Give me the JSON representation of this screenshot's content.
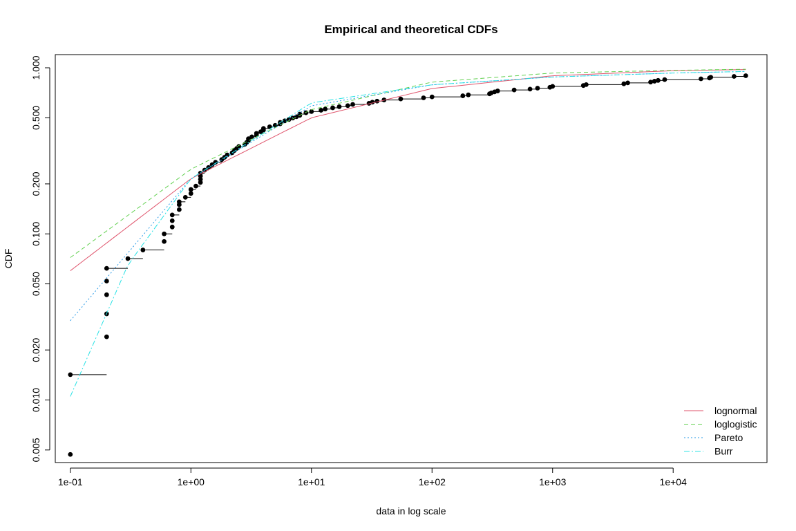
{
  "chart_data": {
    "type": "scatter",
    "title": "Empirical and theoretical CDFs",
    "xlabel": "data in log scale",
    "ylabel": "CDF",
    "x_scale": "log",
    "y_scale": "log",
    "xlim": [
      0.075,
      60000
    ],
    "ylim": [
      0.0042,
      1.2
    ],
    "x_ticks": [
      0.1,
      1,
      10,
      100,
      1000,
      10000
    ],
    "x_tick_labels": [
      "1e-01",
      "1e+00",
      "1e+01",
      "1e+02",
      "1e+03",
      "1e+04"
    ],
    "y_ticks": [
      0.005,
      0.01,
      0.02,
      0.05,
      0.1,
      0.2,
      0.5,
      1.0
    ],
    "y_tick_labels": [
      "0.005",
      "0.010",
      "0.020",
      "0.050",
      "0.100",
      "0.200",
      "0.500",
      "1.000"
    ],
    "grid": false,
    "legend_position": "bottom-right",
    "empirical": {
      "name": "",
      "color": "#000000",
      "points": [
        [
          0.1,
          0.0047
        ],
        [
          0.1,
          0.0142
        ],
        [
          0.2,
          0.024
        ],
        [
          0.2,
          0.033
        ],
        [
          0.2,
          0.043
        ],
        [
          0.2,
          0.052
        ],
        [
          0.2,
          0.062
        ],
        [
          0.3,
          0.071
        ],
        [
          0.4,
          0.08
        ],
        [
          0.6,
          0.09
        ],
        [
          0.6,
          0.1
        ],
        [
          0.7,
          0.11
        ],
        [
          0.7,
          0.12
        ],
        [
          0.7,
          0.13
        ],
        [
          0.8,
          0.14
        ],
        [
          0.8,
          0.15
        ],
        [
          0.8,
          0.156
        ],
        [
          0.9,
          0.166
        ],
        [
          1.0,
          0.175
        ],
        [
          1.0,
          0.185
        ],
        [
          1.1,
          0.194
        ],
        [
          1.2,
          0.204
        ],
        [
          1.2,
          0.213
        ],
        [
          1.2,
          0.223
        ],
        [
          1.2,
          0.232
        ],
        [
          1.3,
          0.242
        ],
        [
          1.4,
          0.251
        ],
        [
          1.5,
          0.261
        ],
        [
          1.6,
          0.27
        ],
        [
          1.8,
          0.28
        ],
        [
          1.9,
          0.289
        ],
        [
          2.0,
          0.299
        ],
        [
          2.2,
          0.308
        ],
        [
          2.3,
          0.318
        ],
        [
          2.4,
          0.327
        ],
        [
          2.5,
          0.336
        ],
        [
          2.8,
          0.346
        ],
        [
          2.9,
          0.355
        ],
        [
          3.0,
          0.365
        ],
        [
          3.0,
          0.374
        ],
        [
          3.2,
          0.384
        ],
        [
          3.5,
          0.393
        ],
        [
          3.5,
          0.403
        ],
        [
          3.8,
          0.412
        ],
        [
          4.0,
          0.422
        ],
        [
          4.0,
          0.431
        ],
        [
          4.5,
          0.441
        ],
        [
          5.0,
          0.45
        ],
        [
          5.5,
          0.46
        ],
        [
          5.5,
          0.469
        ],
        [
          6.0,
          0.479
        ],
        [
          6.5,
          0.488
        ],
        [
          7.0,
          0.498
        ],
        [
          7.5,
          0.507
        ],
        [
          8.0,
          0.517
        ],
        [
          8.0,
          0.526
        ],
        [
          9.0,
          0.536
        ],
        [
          10.0,
          0.545
        ],
        [
          12.0,
          0.555
        ],
        [
          13.0,
          0.564
        ],
        [
          15.0,
          0.574
        ],
        [
          17.0,
          0.583
        ],
        [
          20.0,
          0.592
        ],
        [
          22.0,
          0.602
        ],
        [
          30.0,
          0.611
        ],
        [
          32.0,
          0.621
        ],
        [
          35.0,
          0.63
        ],
        [
          40.0,
          0.64
        ],
        [
          55.0,
          0.649
        ],
        [
          85.0,
          0.659
        ],
        [
          100.0,
          0.668
        ],
        [
          180.0,
          0.678
        ],
        [
          200.0,
          0.687
        ],
        [
          300.0,
          0.697
        ],
        [
          310.0,
          0.706
        ],
        [
          330.0,
          0.716
        ],
        [
          350.0,
          0.725
        ],
        [
          480.0,
          0.735
        ],
        [
          650.0,
          0.744
        ],
        [
          750.0,
          0.754
        ],
        [
          950.0,
          0.763
        ],
        [
          1000.0,
          0.773
        ],
        [
          1800.0,
          0.782
        ],
        [
          1900.0,
          0.792
        ],
        [
          3900.0,
          0.801
        ],
        [
          4200.0,
          0.811
        ],
        [
          6500.0,
          0.82
        ],
        [
          7000.0,
          0.83
        ],
        [
          7500.0,
          0.839
        ],
        [
          8500.0,
          0.849
        ],
        [
          17000.0,
          0.858
        ],
        [
          20000.0,
          0.868
        ],
        [
          20500.0,
          0.877
        ],
        [
          32000.0,
          0.887
        ],
        [
          40000.0,
          0.896
        ]
      ]
    },
    "series": [
      {
        "name": "lognormal",
        "color": "#DF536B",
        "dash": "",
        "x": [
          0.1,
          1,
          10,
          100,
          1000,
          10000,
          40000
        ],
        "y": [
          0.06,
          0.215,
          0.5,
          0.75,
          0.895,
          0.96,
          0.975
        ]
      },
      {
        "name": "loglogistic",
        "color": "#61D04F",
        "dash": "6,4",
        "x": [
          0.1,
          1,
          10,
          100,
          1000,
          10000,
          40000
        ],
        "y": [
          0.072,
          0.245,
          0.56,
          0.82,
          0.93,
          0.965,
          0.98
        ]
      },
      {
        "name": "Pareto",
        "color": "#2297E6",
        "dash": "2,3",
        "x": [
          0.1,
          1,
          10,
          100,
          1000,
          10000,
          40000
        ],
        "y": [
          0.03,
          0.215,
          0.59,
          0.79,
          0.88,
          0.93,
          0.95
        ]
      },
      {
        "name": "Burr",
        "color": "#28E2E5",
        "dash": "8,3,2,3",
        "x": [
          0.1,
          0.3,
          1,
          10,
          100,
          1000,
          10000,
          40000
        ],
        "y": [
          0.0105,
          0.065,
          0.215,
          0.615,
          0.79,
          0.88,
          0.93,
          0.95
        ]
      }
    ]
  }
}
